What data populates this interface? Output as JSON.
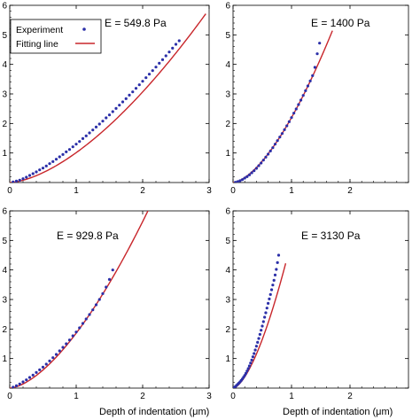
{
  "colors": {
    "experiment": "#2b2fa8",
    "fit": "#c8262b",
    "axis": "#000000",
    "frame": "#ffffff"
  },
  "legend": {
    "experiment_label": "Experiment",
    "fit_label": "Fitting line"
  },
  "xlabel": "Depth of indentation (μm)",
  "chart_data": [
    {
      "type": "scatter",
      "annotation": "E = 549.8 Pa",
      "xlabel": "",
      "xlim": [
        0,
        3
      ],
      "ylim": [
        0,
        6
      ],
      "xticks": [
        0,
        1,
        2,
        3
      ],
      "yticks": [
        0,
        1,
        2,
        3,
        4,
        5,
        6
      ],
      "series": [
        {
          "name": "Experiment",
          "kind": "points",
          "x": [
            0.05,
            0.1,
            0.15,
            0.2,
            0.25,
            0.3,
            0.35,
            0.4,
            0.45,
            0.5,
            0.55,
            0.6,
            0.65,
            0.7,
            0.75,
            0.8,
            0.85,
            0.9,
            0.95,
            1.0,
            1.05,
            1.1,
            1.15,
            1.2,
            1.25,
            1.3,
            1.35,
            1.4,
            1.45,
            1.5,
            1.55,
            1.6,
            1.65,
            1.7,
            1.75,
            1.8,
            1.85,
            1.9,
            1.95,
            2.0,
            2.05,
            2.1,
            2.15,
            2.2,
            2.25,
            2.3,
            2.35,
            2.4,
            2.45,
            2.5,
            2.55
          ],
          "y": [
            0.02,
            0.05,
            0.08,
            0.13,
            0.18,
            0.24,
            0.3,
            0.36,
            0.43,
            0.49,
            0.56,
            0.64,
            0.71,
            0.79,
            0.87,
            0.95,
            1.04,
            1.12,
            1.21,
            1.3,
            1.39,
            1.49,
            1.58,
            1.68,
            1.78,
            1.88,
            1.98,
            2.08,
            2.19,
            2.29,
            2.4,
            2.51,
            2.62,
            2.73,
            2.84,
            2.96,
            3.07,
            3.19,
            3.31,
            3.43,
            3.55,
            3.67,
            3.79,
            3.91,
            4.04,
            4.16,
            4.29,
            4.42,
            4.55,
            4.68,
            4.8
          ]
        },
        {
          "name": "Fitting line",
          "kind": "line",
          "model": "power",
          "coef": 1.012,
          "exponent": 1.6,
          "xmax": 2.95
        }
      ]
    },
    {
      "type": "scatter",
      "annotation": "E = 1400 Pa",
      "xlabel": "",
      "xlim": [
        0,
        3
      ],
      "ylim": [
        0,
        6
      ],
      "xticks": [
        0,
        1,
        2
      ],
      "yticks": [
        0,
        1,
        2,
        3,
        4,
        5,
        6
      ],
      "series": [
        {
          "name": "Experiment",
          "kind": "points",
          "x": [
            0.04,
            0.08,
            0.12,
            0.16,
            0.2,
            0.24,
            0.28,
            0.32,
            0.36,
            0.4,
            0.44,
            0.48,
            0.52,
            0.56,
            0.6,
            0.64,
            0.68,
            0.72,
            0.76,
            0.8,
            0.84,
            0.88,
            0.92,
            0.96,
            1.0,
            1.04,
            1.08,
            1.12,
            1.16,
            1.2,
            1.24,
            1.28,
            1.32,
            1.36,
            1.4,
            1.44,
            1.48
          ],
          "y": [
            0.01,
            0.03,
            0.06,
            0.1,
            0.15,
            0.2,
            0.26,
            0.33,
            0.4,
            0.48,
            0.57,
            0.66,
            0.76,
            0.86,
            0.96,
            1.07,
            1.18,
            1.3,
            1.42,
            1.54,
            1.66,
            1.79,
            1.92,
            2.06,
            2.2,
            2.35,
            2.49,
            2.64,
            2.79,
            2.95,
            3.11,
            3.27,
            3.44,
            3.62,
            3.9,
            4.36,
            4.72
          ]
        },
        {
          "name": "Fitting line",
          "kind": "line",
          "model": "power",
          "coef": 2.2,
          "exponent": 1.6,
          "xmax": 1.7
        }
      ]
    },
    {
      "type": "scatter",
      "annotation": "E = 929.8 Pa",
      "xlabel": "Depth of indentation (μm)",
      "xlim": [
        0,
        3
      ],
      "ylim": [
        0,
        6
      ],
      "xticks": [
        0,
        1,
        2,
        3
      ],
      "yticks": [
        0,
        1,
        2,
        3,
        4,
        5,
        6
      ],
      "series": [
        {
          "name": "Experiment",
          "kind": "points",
          "x": [
            0.05,
            0.1,
            0.15,
            0.2,
            0.25,
            0.3,
            0.35,
            0.4,
            0.45,
            0.5,
            0.55,
            0.6,
            0.65,
            0.7,
            0.75,
            0.8,
            0.85,
            0.9,
            0.95,
            1.0,
            1.05,
            1.1,
            1.15,
            1.2,
            1.25,
            1.3,
            1.35,
            1.4,
            1.45,
            1.5,
            1.55
          ],
          "y": [
            0.03,
            0.08,
            0.14,
            0.21,
            0.28,
            0.36,
            0.44,
            0.53,
            0.62,
            0.71,
            0.81,
            0.92,
            1.03,
            1.14,
            1.26,
            1.38,
            1.5,
            1.63,
            1.77,
            1.9,
            2.04,
            2.19,
            2.34,
            2.49,
            2.65,
            2.82,
            3.0,
            3.2,
            3.42,
            3.68,
            4.0
          ]
        },
        {
          "name": "Fitting line",
          "kind": "line",
          "model": "power",
          "coef": 1.86,
          "exponent": 1.6,
          "xmax": 2.1
        }
      ]
    },
    {
      "type": "scatter",
      "annotation": "E = 3130 Pa",
      "xlabel": "Depth of indentation (μm)",
      "xlim": [
        0,
        3
      ],
      "ylim": [
        0,
        6
      ],
      "xticks": [
        0,
        1,
        2
      ],
      "yticks": [
        0,
        1,
        2,
        3,
        4,
        5,
        6
      ],
      "series": [
        {
          "name": "Experiment",
          "kind": "points",
          "x": [
            0.02,
            0.04,
            0.06,
            0.08,
            0.1,
            0.12,
            0.14,
            0.16,
            0.18,
            0.2,
            0.22,
            0.24,
            0.26,
            0.28,
            0.3,
            0.32,
            0.34,
            0.36,
            0.38,
            0.4,
            0.42,
            0.44,
            0.46,
            0.48,
            0.5,
            0.52,
            0.54,
            0.56,
            0.58,
            0.6,
            0.62,
            0.64,
            0.66,
            0.68,
            0.7,
            0.72,
            0.74,
            0.76,
            0.78
          ],
          "y": [
            0.02,
            0.05,
            0.09,
            0.13,
            0.17,
            0.21,
            0.26,
            0.31,
            0.37,
            0.43,
            0.5,
            0.58,
            0.66,
            0.75,
            0.85,
            0.95,
            1.06,
            1.17,
            1.29,
            1.42,
            1.55,
            1.68,
            1.82,
            1.96,
            2.1,
            2.25,
            2.4,
            2.55,
            2.71,
            2.87,
            3.02,
            3.17,
            3.33,
            3.49,
            3.65,
            3.83,
            4.02,
            4.25,
            4.5
          ]
        },
        {
          "name": "Fitting line",
          "kind": "line",
          "model": "power",
          "coef": 5.0,
          "exponent": 1.6,
          "xmax": 0.9
        }
      ]
    }
  ]
}
